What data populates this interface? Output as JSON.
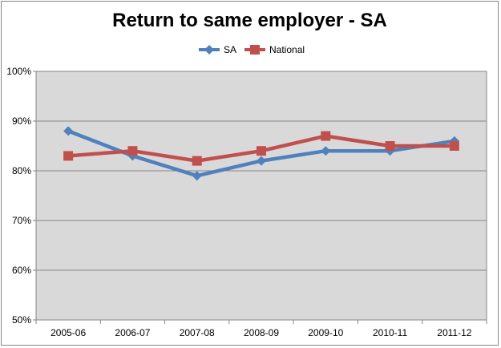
{
  "chart_data": {
    "type": "line",
    "title": "Return to same employer - SA",
    "categories": [
      "2005-06",
      "2006-07",
      "2007-08",
      "2008-09",
      "2009-10",
      "2010-11",
      "2011-12"
    ],
    "series": [
      {
        "name": "SA",
        "values": [
          88,
          83,
          79,
          82,
          84,
          84,
          86
        ],
        "color": "#4F81BD",
        "marker": "diamond"
      },
      {
        "name": "National",
        "values": [
          83,
          84,
          82,
          84,
          87,
          85,
          85
        ],
        "color": "#C0504D",
        "marker": "square"
      }
    ],
    "ylim": [
      50,
      100
    ],
    "yticks": [
      50,
      60,
      70,
      80,
      90,
      100
    ],
    "ytick_labels": [
      "50%",
      "60%",
      "70%",
      "80%",
      "90%",
      "100%"
    ],
    "grid": true,
    "legend_position": "top",
    "plot_background": "#D9D9D9"
  }
}
